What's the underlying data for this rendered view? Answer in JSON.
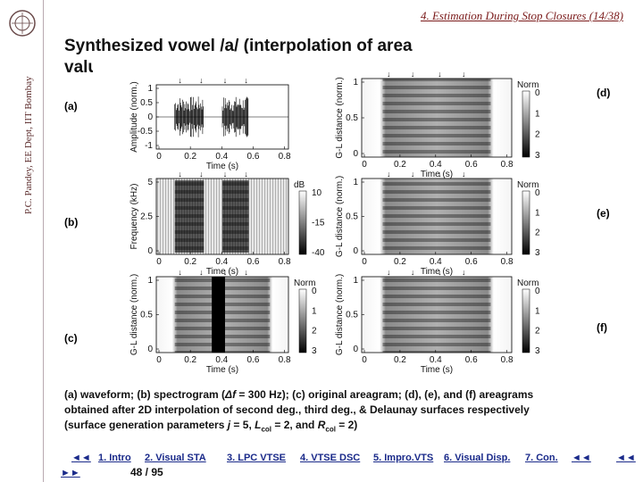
{
  "header": {
    "link": "4. Estimation During Stop Closures (14/38)"
  },
  "sidebar": {
    "text": "P.C. Pandey, EE Dept, IIT Bombay"
  },
  "title": "Synthesized vowel /a/ (interpolation of area values)",
  "figure": {
    "panels": [
      {
        "label": "(a)",
        "ylabel": "Amplitude (norm.)",
        "yticks": [
          "1",
          "0.5",
          "0",
          "-0.5",
          "-1"
        ],
        "xlabel": "Time (s)",
        "xticks": [
          "0",
          "0.2",
          "0.4",
          "0.6",
          "0.8"
        ]
      },
      {
        "label": "(b)",
        "ylabel": "Frequency (kHz)",
        "yticks": [
          "5",
          "2.5",
          "0"
        ],
        "xlabel": "Time (s)",
        "xticks": [
          "0",
          "0.2",
          "0.4",
          "0.6",
          "0.8"
        ],
        "colorbar": {
          "title": "dB",
          "ticks": [
            "10",
            "-15",
            "-40"
          ]
        }
      },
      {
        "label": "(c)",
        "ylabel": "G-L distance (norm.)",
        "yticks": [
          "1",
          "0.5",
          "0"
        ],
        "xlabel": "Time (s)",
        "xticks": [
          "0",
          "0.2",
          "0.4",
          "0.6",
          "0.8"
        ],
        "colorbar": {
          "title": "Norm",
          "ticks": [
            "0",
            "1",
            "2",
            "3"
          ]
        }
      },
      {
        "label": "(d)",
        "ylabel": "G-L distance (norm.)",
        "yticks": [
          "1",
          "0.5",
          "0"
        ],
        "xlabel": "Time (s)",
        "xticks": [
          "0",
          "0.2",
          "0.4",
          "0.6",
          "0.8"
        ],
        "colorbar": {
          "title": "Norm",
          "ticks": [
            "0",
            "1",
            "2",
            "3"
          ]
        }
      },
      {
        "label": "(e)",
        "ylabel": "G-L distance (norm.)",
        "yticks": [
          "1",
          "0.5",
          "0"
        ],
        "xlabel": "Time (s)",
        "xticks": [
          "0",
          "0.2",
          "0.4",
          "0.6",
          "0.8"
        ],
        "colorbar": {
          "title": "Norm",
          "ticks": [
            "0",
            "1",
            "2",
            "3"
          ]
        }
      },
      {
        "label": "(f)",
        "ylabel": "G-L distance (norm.)",
        "yticks": [
          "1",
          "0.5",
          "0"
        ],
        "xlabel": "Time (s)",
        "xticks": [
          "0",
          "0.2",
          "0.4",
          "0.6",
          "0.8"
        ],
        "colorbar": {
          "title": "Norm",
          "ticks": [
            "0",
            "1",
            "2",
            "3"
          ]
        }
      }
    ]
  },
  "caption": {
    "line1": [
      "(a) waveform; (b) spectrogram (",
      "Δf",
      " = 300 Hz); (c) original areagram; (d), (e), and (f) areagrams"
    ],
    "line2": "obtained after 2D interpolation of second deg., third deg., & Delaunay surfaces respectively",
    "line3": [
      "(surface generation parameters ",
      "j",
      " = 5, ",
      "L",
      "col",
      " = 2, and ",
      "R",
      "col",
      " = 2)"
    ]
  },
  "nav": {
    "first": "◄◄",
    "last": "►►",
    "links": [
      "1. Intro",
      "2. Visual STA",
      "3. LPC VTSE",
      "4. VTSE DSC",
      "5. Impro.VTS",
      "6. Visual Disp.",
      "7. Con."
    ],
    "back": "◄◄",
    "end": "◄◄",
    "page": "48 / 95"
  }
}
